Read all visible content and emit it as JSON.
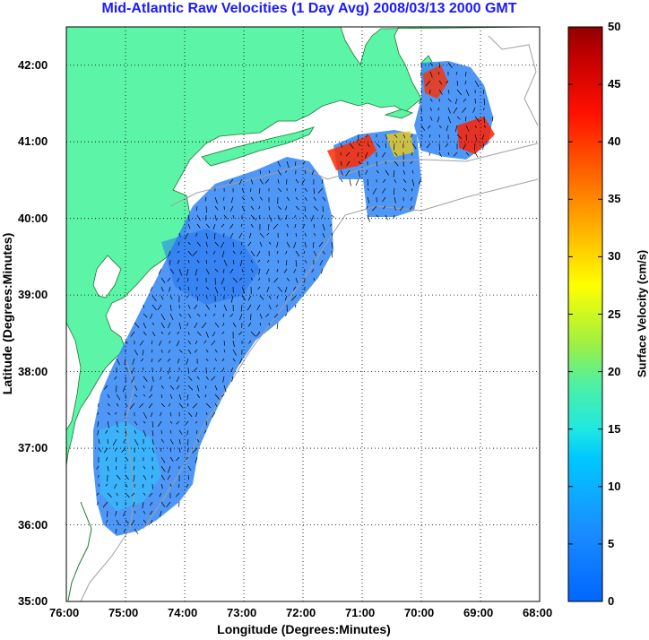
{
  "title": "Mid-Atlantic Raw Velocities (1 Day Avg) 2008/03/13 2000 GMT",
  "axes": {
    "xlabel": "Longitude (Degrees:Minutes)",
    "ylabel": "Latitude (Degrees:Minutes)",
    "x_ticks": [
      "76:00",
      "75:00",
      "74:00",
      "73:00",
      "72:00",
      "71:00",
      "70:00",
      "69:00",
      "68:00"
    ],
    "y_ticks": [
      "42:00",
      "41:00",
      "40:00",
      "39:00",
      "38:00",
      "37:00",
      "36:00",
      "35:00"
    ],
    "x_range_deg_west": [
      76,
      68
    ],
    "y_range_deg_north": [
      35,
      42.5
    ],
    "grid": "dotted"
  },
  "colorbar": {
    "label": "Surface Velocity (cm/s)",
    "ticks": [
      "50",
      "45",
      "40",
      "35",
      "30",
      "25",
      "20",
      "15",
      "10",
      "5",
      "0"
    ],
    "range": [
      0,
      50
    ],
    "colormap": "jet"
  },
  "colors": {
    "land": "#5cf5a8",
    "ocean": "#ffffff",
    "title": "#1a1aff",
    "current_field": "#2f8cff",
    "bathymetry": "#a0a0a0"
  }
}
